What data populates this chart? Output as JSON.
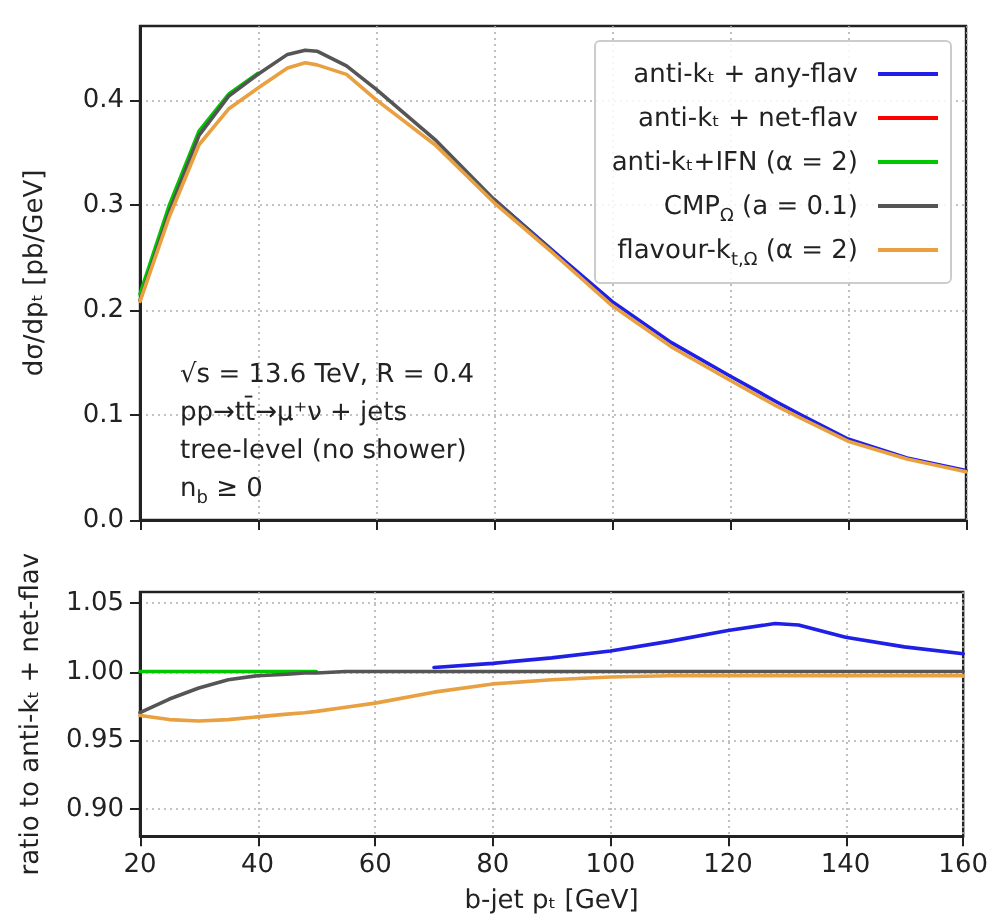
{
  "chart_data": [
    {
      "type": "line",
      "ylabel": "dσ/dpₜ [pb/GeV]",
      "x": [
        20,
        25,
        30,
        35,
        40,
        45,
        48,
        50,
        55,
        60,
        70,
        80,
        90,
        100,
        110,
        120,
        128,
        132,
        140,
        150,
        160
      ],
      "series": [
        {
          "name": "anti-kₜ + any-flav",
          "color": "#1f1fe6",
          "values": [
            null,
            null,
            null,
            null,
            null,
            null,
            null,
            null,
            null,
            null,
            null,
            0.305,
            0.256,
            0.208,
            0.169,
            0.137,
            0.112,
            0.1,
            0.077,
            0.059,
            0.047
          ]
        },
        {
          "name": "anti-kₜ + net-flav",
          "color": "#ff0000",
          "values": [
            null,
            null,
            null,
            null,
            null,
            null,
            null,
            null,
            null,
            null,
            null,
            null,
            null,
            null,
            null,
            null,
            null,
            null,
            null,
            null,
            null
          ]
        },
        {
          "name": "anti-kₜ+IFN (α = 2)",
          "color": "#00c800",
          "values": [
            0.215,
            0.3,
            0.37,
            0.405,
            0.425,
            null,
            null,
            null,
            null,
            null,
            null,
            null,
            null,
            null,
            null,
            null,
            null,
            null,
            null,
            null,
            null
          ]
        },
        {
          "name": "CMP$_{Ω}$ (a = 0.1)",
          "color": "#555555",
          "values": [
            0.209,
            0.294,
            0.366,
            0.403,
            0.424,
            0.443,
            0.447,
            0.446,
            0.432,
            0.41,
            0.362,
            0.305,
            0.255,
            null,
            null,
            null,
            null,
            null,
            null,
            null,
            null
          ]
        },
        {
          "name": "flavour-k$_{t,Ω}$ (α = 2)",
          "color": "#e8a040",
          "values": [
            0.208,
            0.289,
            0.357,
            0.391,
            0.411,
            0.43,
            0.435,
            0.433,
            0.424,
            0.4,
            0.357,
            0.302,
            0.254,
            0.204,
            0.165,
            0.133,
            0.108,
            0.097,
            0.075,
            0.058,
            0.046
          ]
        }
      ],
      "xlim": [
        20,
        160
      ],
      "xticks": [
        20,
        40,
        60,
        80,
        100,
        120,
        140,
        160
      ],
      "ylim": [
        0,
        0.47
      ],
      "yticks": [
        {
          "value": 0,
          "label": "0.0"
        },
        0.1,
        0.2,
        0.3,
        0.4
      ],
      "tick_labels": "y",
      "grid": true,
      "legend": "top right",
      "marker": "none",
      "line_style": "solid",
      "annotations": [
        "√s = 13.6 TeV, R = 0.4",
        "pp→tt̄→μ⁺ν + jets",
        "tree-level (no shower)",
        "n$_{b}$ ≥ 0"
      ]
    },
    {
      "type": "line",
      "xlabel": "b-jet pₜ [GeV]",
      "ylabel": "ratio to anti-kₜ + net-flav",
      "x": [
        20,
        25,
        30,
        35,
        40,
        45,
        48,
        50,
        55,
        60,
        70,
        80,
        90,
        100,
        110,
        120,
        128,
        132,
        140,
        150,
        160
      ],
      "series": [
        {
          "color": "#1f1fe6",
          "values": [
            null,
            null,
            null,
            null,
            null,
            null,
            null,
            null,
            null,
            null,
            1.003,
            1.006,
            1.01,
            1.015,
            1.022,
            1.03,
            1.035,
            1.034,
            1.025,
            1.018,
            1.013
          ]
        },
        {
          "color": "#ff0000",
          "values": [
            null,
            null,
            null,
            null,
            null,
            null,
            null,
            null,
            null,
            null,
            null,
            null,
            null,
            null,
            null,
            null,
            null,
            null,
            null,
            null,
            null
          ]
        },
        {
          "color": "#00c800",
          "values": [
            1.0,
            1.0,
            1.0,
            1.0,
            1.0,
            1.0,
            1.0,
            1.0,
            null,
            null,
            null,
            null,
            null,
            null,
            null,
            null,
            null,
            null,
            null,
            null,
            null
          ]
        },
        {
          "color": "#555555",
          "values": [
            0.97,
            0.98,
            0.988,
            0.994,
            0.997,
            0.998,
            0.999,
            0.999,
            1.0,
            1.0,
            1.0,
            1.0,
            1.0,
            1.0,
            1.0,
            1.0,
            1.0,
            1.0,
            1.0,
            1.0,
            1.0
          ]
        },
        {
          "color": "#e8a040",
          "values": [
            0.968,
            0.965,
            0.964,
            0.965,
            0.967,
            0.969,
            0.97,
            0.971,
            0.974,
            0.977,
            0.985,
            0.991,
            0.994,
            0.996,
            0.997,
            0.997,
            0.997,
            0.997,
            0.997,
            0.997,
            0.997
          ]
        }
      ],
      "xlim": [
        20,
        160
      ],
      "xticks": [
        20,
        40,
        60,
        80,
        100,
        120,
        140,
        160
      ],
      "ylim": [
        0.88,
        1.058
      ],
      "yticks": [
        {
          "value": 0.9,
          "label": "0.90"
        },
        {
          "value": 0.95,
          "label": "0.95"
        },
        {
          "value": 1.0,
          "label": "1.00"
        },
        {
          "value": 1.05,
          "label": "1.05"
        }
      ],
      "grid": true,
      "legend": false,
      "marker": "none",
      "line_style": "solid"
    }
  ]
}
